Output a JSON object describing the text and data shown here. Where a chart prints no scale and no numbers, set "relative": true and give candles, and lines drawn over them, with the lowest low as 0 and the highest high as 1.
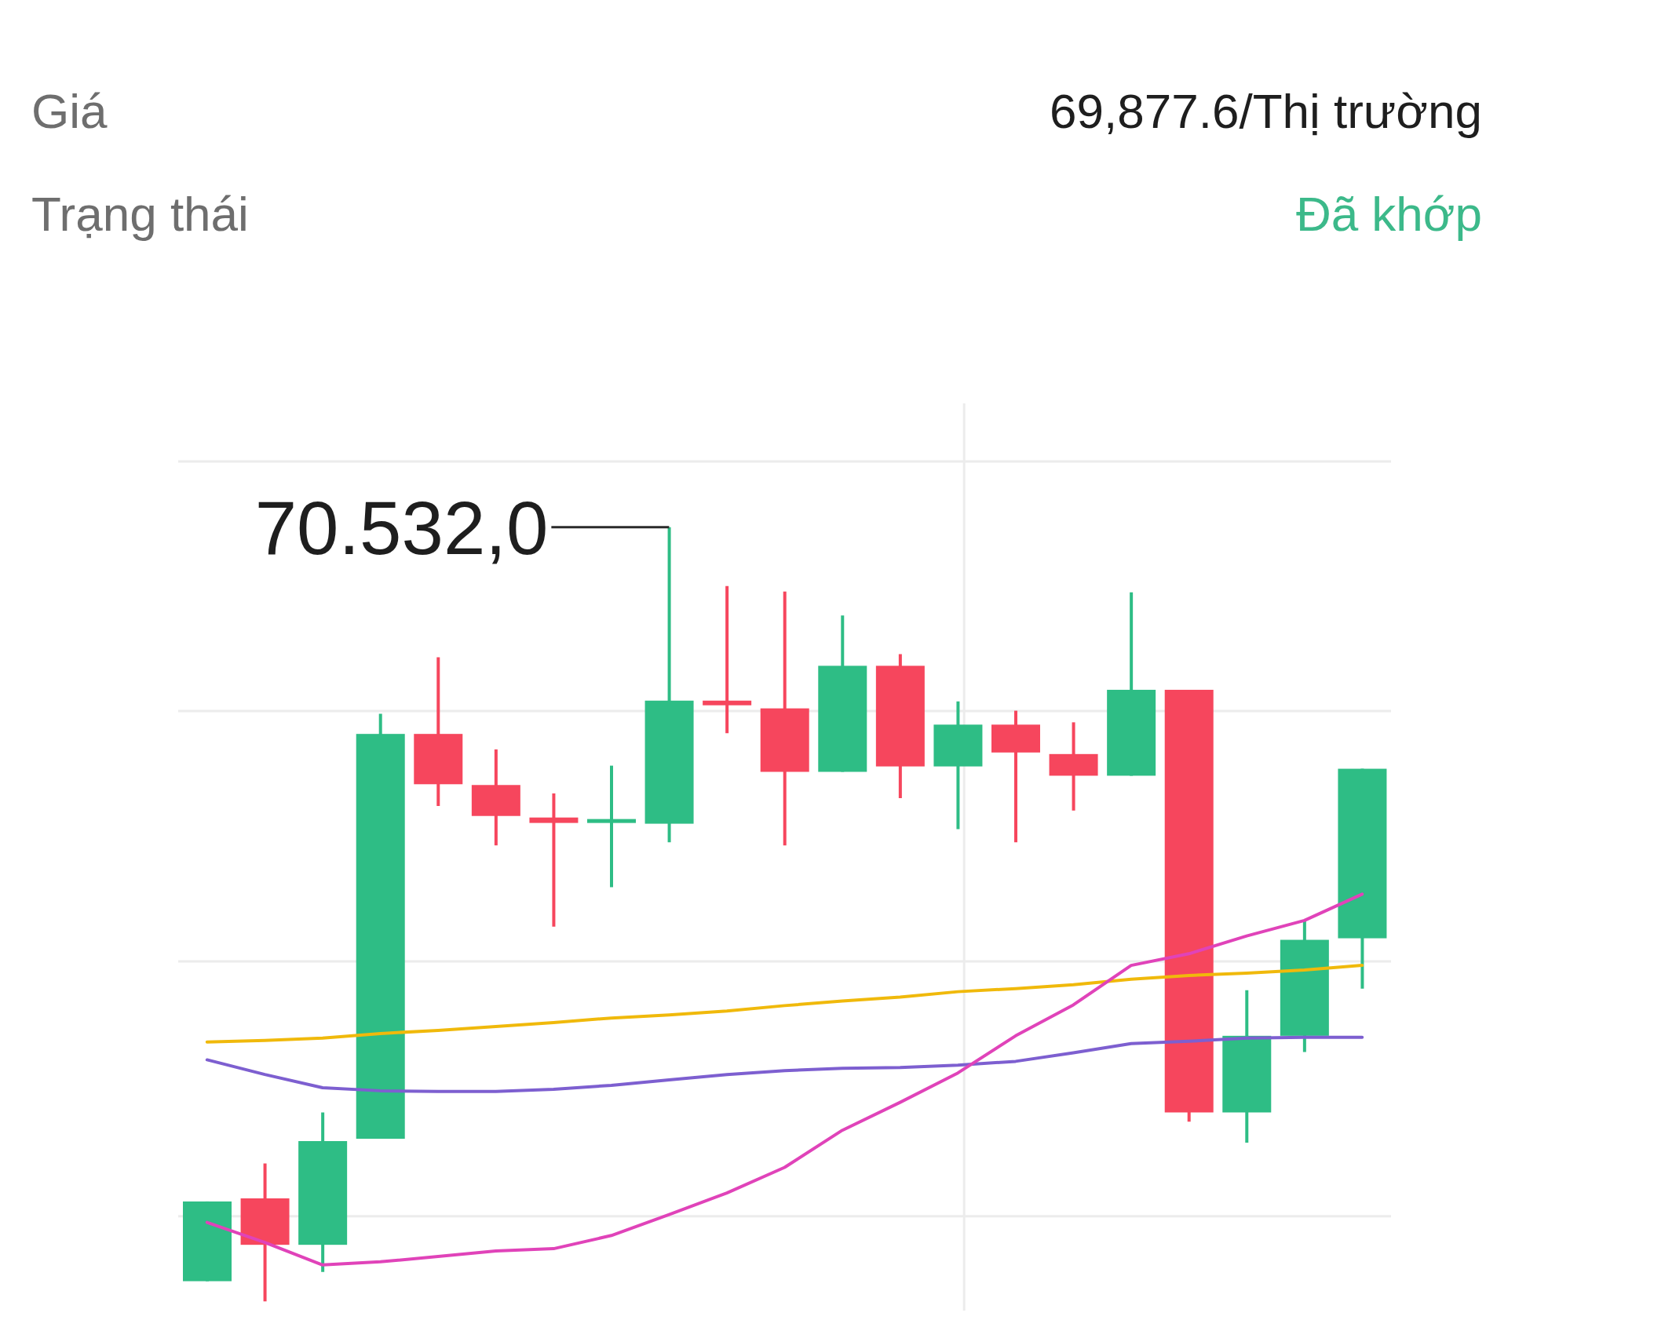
{
  "chart_data": {
    "type": "candlestick",
    "relative": true,
    "categories": [
      null,
      null,
      null,
      null,
      null,
      null,
      null,
      null,
      null,
      null,
      null,
      null,
      null,
      null,
      null,
      null,
      null,
      null,
      null,
      null,
      null
    ],
    "ohlc": [
      [
        0.026,
        0.129,
        0.026,
        0.129
      ],
      [
        0.133,
        0.178,
        0,
        0.073
      ],
      [
        0.073,
        0.244,
        0.038,
        0.207
      ],
      [
        0.21,
        0.759,
        0.21,
        0.733
      ],
      [
        0.733,
        0.832,
        0.64,
        0.668
      ],
      [
        0.667,
        0.713,
        0.589,
        0.627
      ],
      [
        0.625,
        0.656,
        0.484,
        0.618
      ],
      [
        0.618,
        0.692,
        0.535,
        0.623
      ],
      [
        0.617,
        1,
        0.593,
        0.776
      ],
      [
        0.776,
        0.924,
        0.734,
        0.77
      ],
      [
        0.766,
        0.917,
        0.589,
        0.684
      ],
      [
        0.684,
        0.886,
        0.684,
        0.821
      ],
      [
        0.821,
        0.836,
        0.65,
        0.691
      ],
      [
        0.691,
        0.775,
        0.61,
        0.745
      ],
      [
        0.745,
        0.763,
        0.593,
        0.709
      ],
      [
        0.707,
        0.748,
        0.634,
        0.679
      ],
      [
        0.679,
        0.916,
        0.679,
        0.79
      ],
      [
        0.79,
        0.79,
        0.232,
        0.244
      ],
      [
        0.244,
        0.402,
        0.205,
        0.343
      ],
      [
        0.343,
        0.492,
        0.322,
        0.467
      ],
      [
        0.469,
        0.688,
        0.404,
        0.688
      ]
    ],
    "colors": [
      "#2ebd85",
      "#f6465d",
      "#2ebd85",
      "#2ebd85",
      "#f6465d",
      "#f6465d",
      "#f6465d",
      "#2ebd85",
      "#2ebd85",
      "#f6465d",
      "#f6465d",
      "#2ebd85",
      "#f6465d",
      "#2ebd85",
      "#f6465d",
      "#f6465d",
      "#2ebd85",
      "#f6465d",
      "#2ebd85",
      "#2ebd85",
      "#2ebd85"
    ],
    "series": [
      {
        "type": "line",
        "color": "#f0b90b",
        "values": [
          0.335,
          0.337,
          0.34,
          0.346,
          0.35,
          0.355,
          0.36,
          0.366,
          0.37,
          0.375,
          0.382,
          0.388,
          0.393,
          0.4,
          0.404,
          0.409,
          0.416,
          0.421,
          0.424,
          0.428,
          0.434
        ]
      },
      {
        "type": "line",
        "color": "#7d5fd0",
        "values": [
          0.312,
          0.293,
          0.276,
          0.272,
          0.271,
          0.271,
          0.274,
          0.279,
          0.286,
          0.293,
          0.298,
          0.301,
          0.302,
          0.305,
          0.31,
          0.321,
          0.333,
          0.336,
          0.34,
          0.341,
          0.341
        ]
      },
      {
        "type": "line",
        "color": "#e043b9",
        "values": [
          0.102,
          0.076,
          0.047,
          0.051,
          0.058,
          0.065,
          0.068,
          0.085,
          0.112,
          0.14,
          0.173,
          0.221,
          0.257,
          0.295,
          0.343,
          0.383,
          0.434,
          0.449,
          0.472,
          0.492,
          0.526
        ]
      }
    ],
    "grid": true,
    "annotations": [
      "Giá",
      "69,877.6/Thị trường",
      "Trạng thái",
      "Đã khớp",
      "70.532,0"
    ]
  }
}
